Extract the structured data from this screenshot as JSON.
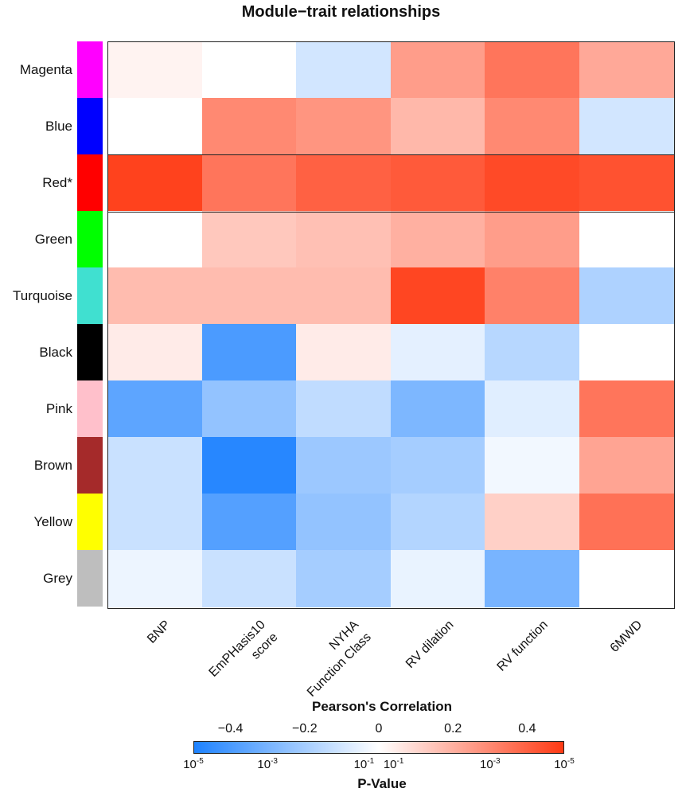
{
  "chart_data": {
    "type": "heatmap",
    "title": "Module−trait relationships",
    "rows": [
      "Magenta",
      "Blue",
      "Red*",
      "Green",
      "Turquoise",
      "Black",
      "Pink",
      "Brown",
      "Yellow",
      "Grey"
    ],
    "row_colors": [
      "#ff00ff",
      "#0000ff",
      "#ff0000",
      "#00ff00",
      "#40e0d0",
      "#000000",
      "#ffc0cb",
      "#a52a2a",
      "#ffff00",
      "#bebebe"
    ],
    "columns": [
      {
        "line1": "BNP",
        "line2": ""
      },
      {
        "line1": "EmPHasis10",
        "line2": "score"
      },
      {
        "line1": "NYHA",
        "line2": "Function Class"
      },
      {
        "line1": "RV dilation",
        "line2": ""
      },
      {
        "line1": "RV function",
        "line2": ""
      },
      {
        "line1": "6MWD",
        "line2": ""
      }
    ],
    "values": [
      [
        0.03,
        0.0,
        -0.1,
        0.25,
        0.35,
        0.22
      ],
      [
        0.0,
        0.3,
        0.27,
        0.18,
        0.3,
        -0.1
      ],
      [
        0.48,
        0.35,
        0.4,
        0.42,
        0.46,
        0.44
      ],
      [
        0.0,
        0.14,
        0.16,
        0.2,
        0.25,
        0.0
      ],
      [
        0.17,
        0.17,
        0.17,
        0.47,
        0.32,
        -0.18
      ],
      [
        0.05,
        -0.4,
        0.05,
        -0.06,
        -0.16,
        0.0
      ],
      [
        -0.36,
        -0.24,
        -0.14,
        -0.29,
        -0.07,
        0.35
      ],
      [
        -0.12,
        -0.48,
        -0.22,
        -0.2,
        -0.03,
        0.23
      ],
      [
        -0.12,
        -0.38,
        -0.24,
        -0.17,
        0.12,
        0.36
      ],
      [
        -0.04,
        -0.12,
        -0.2,
        -0.05,
        -0.3,
        0.0
      ]
    ],
    "highlighted_row": "Red*",
    "legend": {
      "title": "Pearson's Correlation",
      "range": [
        -0.5,
        0.5
      ],
      "ticks": [
        "−0.4",
        "−0.2",
        "0",
        "0.2",
        "0.4"
      ],
      "tick_values": [
        -0.4,
        -0.2,
        0,
        0.2,
        0.4
      ],
      "pvalue_title": "P-Value",
      "pvalue_ticks": [
        {
          "base": "10",
          "exp": "-5",
          "value": -0.5
        },
        {
          "base": "10",
          "exp": "-3",
          "value": -0.3
        },
        {
          "base": "10",
          "exp": "-1",
          "value": -0.04
        },
        {
          "base": "10",
          "exp": "-1",
          "value": 0.04
        },
        {
          "base": "10",
          "exp": "-3",
          "value": 0.3
        },
        {
          "base": "10",
          "exp": "-5",
          "value": 0.5
        }
      ],
      "neg_color": "#1e82ff",
      "mid_color": "#ffffff",
      "pos_color": "#ff3a14"
    }
  }
}
